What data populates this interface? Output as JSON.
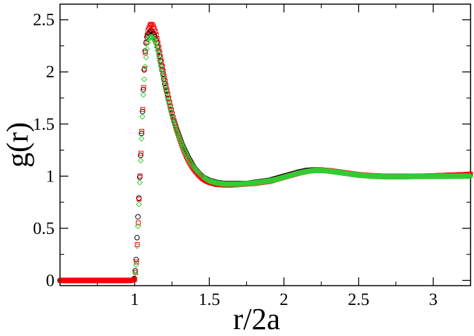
{
  "chart_data": {
    "type": "scatter",
    "title": "",
    "xlabel": "r/2a",
    "ylabel": "g(r)",
    "xlim": [
      0.5,
      3.25
    ],
    "ylim": [
      -0.05,
      2.65
    ],
    "xticks": [
      1,
      1.5,
      2,
      2.5,
      3
    ],
    "xtick_labels": [
      "1",
      "1.5",
      "2",
      "2.5",
      "3"
    ],
    "yticks": [
      0,
      0.5,
      1,
      1.5,
      2,
      2.5
    ],
    "ytick_labels": [
      "0",
      "0.5",
      "1",
      "1.5",
      "2",
      "2.5"
    ],
    "grid": false,
    "legend": "none",
    "series": [
      {
        "marker": "circle",
        "color": "#000000",
        "x": [
          0.5,
          0.6,
          0.7,
          0.8,
          0.9,
          0.95,
          0.98,
          1.0,
          1.01,
          1.02,
          1.03,
          1.04,
          1.05,
          1.06,
          1.07,
          1.08,
          1.09,
          1.1,
          1.11,
          1.12,
          1.13,
          1.14,
          1.15,
          1.16,
          1.17,
          1.18,
          1.19,
          1.2,
          1.22,
          1.24,
          1.26,
          1.28,
          1.3,
          1.32,
          1.34,
          1.36,
          1.38,
          1.4,
          1.43,
          1.46,
          1.5,
          1.55,
          1.6,
          1.65,
          1.7,
          1.75,
          1.8,
          1.85,
          1.9,
          1.95,
          2.0,
          2.05,
          2.1,
          2.15,
          2.2,
          2.25,
          2.3,
          2.35,
          2.4,
          2.45,
          2.5,
          2.6,
          2.7,
          2.8,
          2.9,
          3.0,
          3.1,
          3.2,
          3.25
        ],
        "y": [
          0.0,
          0.0,
          0.0,
          0.0,
          0.0,
          0.0,
          0.0,
          0.02,
          0.2,
          0.55,
          0.85,
          1.2,
          1.55,
          1.9,
          2.2,
          2.33,
          2.36,
          2.38,
          2.4,
          2.38,
          2.36,
          2.32,
          2.27,
          2.2,
          2.12,
          2.05,
          1.98,
          1.9,
          1.78,
          1.66,
          1.55,
          1.46,
          1.38,
          1.3,
          1.24,
          1.18,
          1.13,
          1.08,
          1.03,
          0.99,
          0.96,
          0.94,
          0.93,
          0.93,
          0.93,
          0.93,
          0.94,
          0.95,
          0.96,
          0.98,
          1.0,
          1.02,
          1.04,
          1.055,
          1.06,
          1.06,
          1.05,
          1.04,
          1.03,
          1.02,
          1.01,
          1.0,
          0.995,
          0.995,
          1.0,
          1.0,
          1.0,
          1.005,
          1.005
        ]
      },
      {
        "marker": "square",
        "color": "#ff0000",
        "x": [
          0.5,
          0.55,
          0.6,
          0.65,
          0.7,
          0.75,
          0.8,
          0.85,
          0.9,
          0.95,
          0.98,
          1.0,
          1.01,
          1.02,
          1.03,
          1.04,
          1.05,
          1.06,
          1.07,
          1.08,
          1.09,
          1.1,
          1.11,
          1.12,
          1.13,
          1.14,
          1.15,
          1.16,
          1.17,
          1.18,
          1.19,
          1.2,
          1.22,
          1.24,
          1.26,
          1.28,
          1.3,
          1.32,
          1.34,
          1.36,
          1.38,
          1.4,
          1.43,
          1.46,
          1.5,
          1.55,
          1.6,
          1.65,
          1.7,
          1.75,
          1.8,
          1.85,
          1.9,
          1.95,
          2.0,
          2.05,
          2.1,
          2.15,
          2.2,
          2.25,
          2.3,
          2.35,
          2.4,
          2.45,
          2.5,
          2.6,
          2.7,
          2.8,
          2.9,
          3.0,
          3.1,
          3.2,
          3.25
        ],
        "y": [
          0.0,
          0.0,
          0.0,
          0.0,
          0.0,
          0.0,
          0.0,
          0.0,
          0.0,
          0.0,
          0.0,
          0.01,
          0.12,
          0.4,
          0.78,
          1.15,
          1.5,
          1.85,
          2.15,
          2.32,
          2.4,
          2.44,
          2.46,
          2.45,
          2.42,
          2.38,
          2.32,
          2.25,
          2.17,
          2.1,
          2.02,
          1.94,
          1.8,
          1.67,
          1.55,
          1.45,
          1.36,
          1.28,
          1.21,
          1.15,
          1.1,
          1.06,
          1.01,
          0.97,
          0.94,
          0.92,
          0.915,
          0.915,
          0.92,
          0.925,
          0.93,
          0.94,
          0.95,
          0.97,
          0.99,
          1.01,
          1.03,
          1.045,
          1.055,
          1.06,
          1.055,
          1.045,
          1.035,
          1.025,
          1.015,
          1.005,
          1.0,
          1.0,
          1.0,
          1.005,
          1.01,
          1.015,
          1.02
        ]
      },
      {
        "marker": "diamond",
        "color": "#33cc33",
        "x": [
          1.0,
          1.01,
          1.02,
          1.03,
          1.04,
          1.05,
          1.06,
          1.07,
          1.08,
          1.09,
          1.1,
          1.11,
          1.12,
          1.13,
          1.14,
          1.15,
          1.16,
          1.17,
          1.18,
          1.19,
          1.2,
          1.22,
          1.24,
          1.26,
          1.28,
          1.3,
          1.32,
          1.34,
          1.36,
          1.38,
          1.4,
          1.43,
          1.46,
          1.5,
          1.55,
          1.6,
          1.65,
          1.7,
          1.75,
          1.8,
          1.85,
          1.9,
          1.95,
          2.0,
          2.05,
          2.1,
          2.15,
          2.2,
          2.25,
          2.3,
          2.35,
          2.4,
          2.45,
          2.5,
          2.6,
          2.7,
          2.8,
          2.9,
          3.0,
          3.1,
          3.2,
          3.25
        ],
        "y": [
          0.02,
          0.15,
          0.45,
          0.8,
          1.15,
          1.5,
          1.85,
          2.05,
          2.2,
          2.3,
          2.33,
          2.34,
          2.33,
          2.31,
          2.28,
          2.23,
          2.17,
          2.1,
          2.03,
          1.96,
          1.88,
          1.76,
          1.64,
          1.53,
          1.44,
          1.36,
          1.29,
          1.23,
          1.17,
          1.12,
          1.08,
          1.03,
          0.99,
          0.955,
          0.935,
          0.925,
          0.925,
          0.925,
          0.93,
          0.935,
          0.945,
          0.955,
          0.97,
          0.99,
          1.01,
          1.03,
          1.045,
          1.055,
          1.055,
          1.05,
          1.04,
          1.03,
          1.02,
          1.01,
          1.0,
          0.995,
          0.995,
          0.998,
          1.0,
          1.0,
          1.0,
          1.0
        ]
      }
    ]
  }
}
